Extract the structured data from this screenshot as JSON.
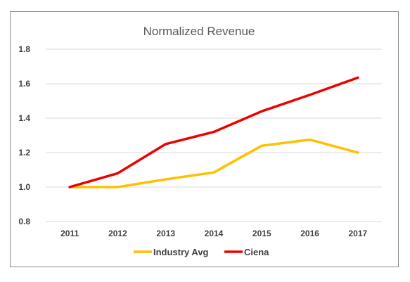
{
  "chart_data": {
    "type": "line",
    "title": "Normalized Revenue",
    "xlabel": "",
    "ylabel": "",
    "categories": [
      "2011",
      "2012",
      "2013",
      "2014",
      "2015",
      "2016",
      "2017"
    ],
    "ylim": [
      0.8,
      1.8
    ],
    "yticks": [
      "0.8",
      "1.0",
      "1.2",
      "1.4",
      "1.6",
      "1.8"
    ],
    "grid": true,
    "legend_position": "bottom",
    "series": [
      {
        "name": "Industry Avg",
        "color": "#FFC000",
        "values": [
          1.0,
          1.0,
          1.045,
          1.085,
          1.24,
          1.275,
          1.2
        ]
      },
      {
        "name": "Ciena",
        "color": "#EE0000",
        "values": [
          1.0,
          1.08,
          1.25,
          1.32,
          1.44,
          1.535,
          1.635
        ]
      }
    ]
  }
}
